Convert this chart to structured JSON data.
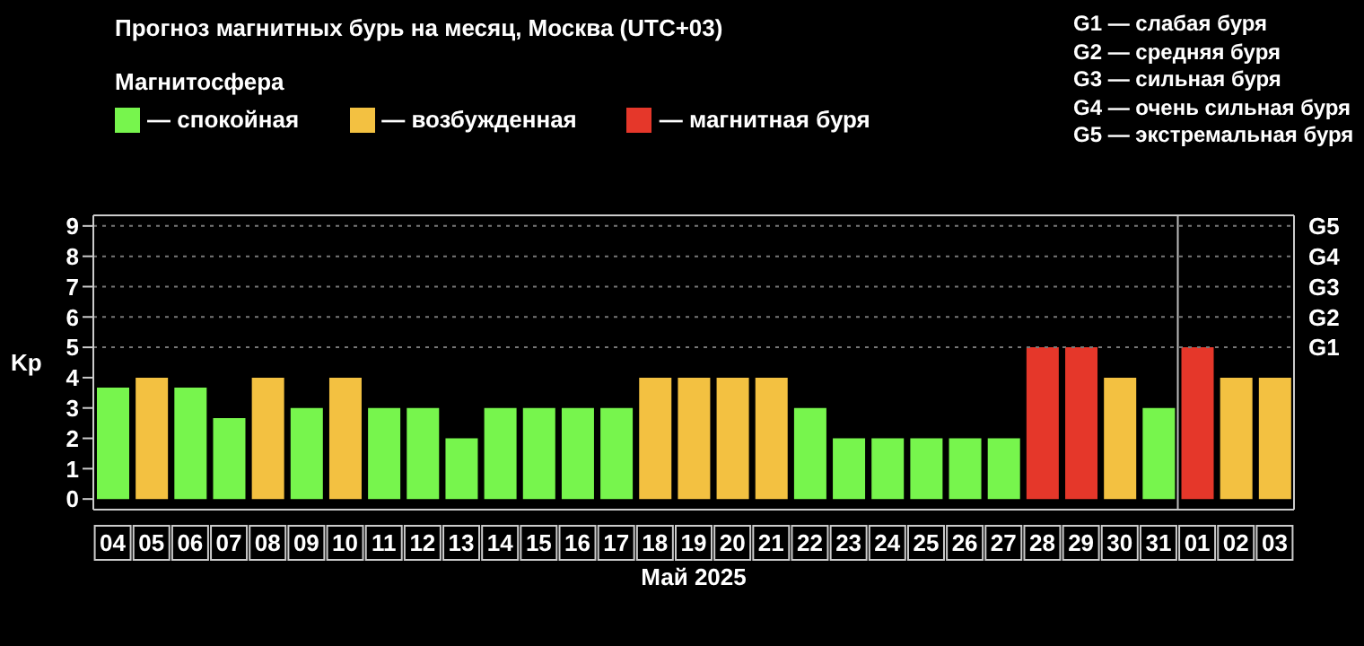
{
  "chart_data": {
    "type": "bar",
    "title": "Прогноз магнитных бурь на месяц, Москва (UTC+03)",
    "xlabel": "Май 2025",
    "ylabel": "Kp",
    "legend_title": "Магнитосфера",
    "categories": [
      "04",
      "05",
      "06",
      "07",
      "08",
      "09",
      "10",
      "11",
      "12",
      "13",
      "14",
      "15",
      "16",
      "17",
      "18",
      "19",
      "20",
      "21",
      "22",
      "23",
      "24",
      "25",
      "26",
      "27",
      "28",
      "29",
      "30",
      "31",
      "01",
      "02",
      "03"
    ],
    "stacked": true,
    "series": [
      {
        "name": "— спокойная",
        "color": "#77f54d",
        "values": [
          3.67,
          null,
          3.67,
          2.67,
          null,
          3,
          null,
          3,
          3,
          2,
          3,
          3,
          3,
          3,
          null,
          null,
          null,
          null,
          3,
          2,
          2,
          2,
          2,
          2,
          null,
          null,
          null,
          3,
          null,
          null,
          null
        ]
      },
      {
        "name": "— возбужденная",
        "color": "#f3c141",
        "values": [
          null,
          4,
          null,
          null,
          4,
          null,
          4,
          null,
          null,
          null,
          null,
          null,
          null,
          null,
          4,
          4,
          4,
          4,
          null,
          null,
          null,
          null,
          null,
          null,
          null,
          null,
          4,
          null,
          null,
          4,
          4
        ]
      },
      {
        "name": "— магнитная буря",
        "color": "#e5372a",
        "values": [
          null,
          null,
          null,
          null,
          null,
          null,
          null,
          null,
          null,
          null,
          null,
          null,
          null,
          null,
          null,
          null,
          null,
          null,
          null,
          null,
          null,
          null,
          null,
          null,
          5,
          5,
          null,
          null,
          5,
          null,
          null
        ]
      }
    ],
    "ylim": [
      -0.35,
      9.35
    ],
    "yticks": [
      0,
      1,
      2,
      3,
      4,
      5,
      6,
      7,
      8,
      9
    ],
    "ref_lines": [
      {
        "axis": "x",
        "value": "01",
        "color": "#bbbbbb"
      },
      {
        "axis": "y",
        "value": 5,
        "label": "G1",
        "color": "#777777",
        "line_style": "dotted"
      },
      {
        "axis": "y",
        "value": 6,
        "label": "G2",
        "color": "#777777",
        "line_style": "dotted"
      },
      {
        "axis": "y",
        "value": 7,
        "label": "G3",
        "color": "#777777",
        "line_style": "dotted"
      },
      {
        "axis": "y",
        "value": 8,
        "label": "G4",
        "color": "#777777",
        "line_style": "dotted"
      },
      {
        "axis": "y",
        "value": 9,
        "label": "G5",
        "color": "#777777",
        "line_style": "dotted"
      }
    ],
    "legend": "top left",
    "annotations": [
      "G1 — слабая буря",
      "G2 — средняя буря",
      "G3 — сильная буря",
      "G4 — очень сильная буря",
      "G5 — экстремальная буря"
    ]
  }
}
